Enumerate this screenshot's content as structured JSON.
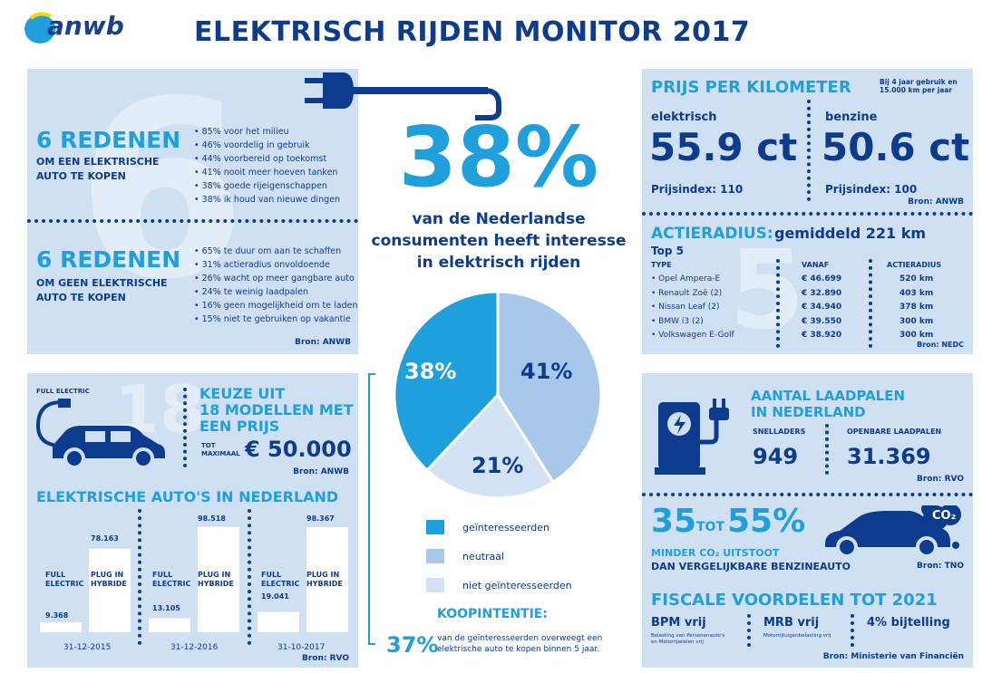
{
  "logo": {
    "text": "anwb"
  },
  "title": "ELEKTRISCH RIJDEN MONITOR 2017",
  "reasons": {
    "for_title": "6 REDENEN",
    "for_sub": [
      "OM EEN ELEKTRISCHE",
      "AUTO TE KOPEN"
    ],
    "for_items": [
      "85% voor het milieu",
      "46% voordelig in gebruik",
      "44% voorbereid op toekomst",
      "41% nooit meer hoeven tanken",
      "38% goede rijeigenschappen",
      "38% ik houd van nieuwe dingen"
    ],
    "against_title": "6 REDENEN",
    "against_sub": [
      "OM GEEN ELEKTRISCHE",
      "AUTO TE KOPEN"
    ],
    "against_items": [
      "65% te duur om aan te schaffen",
      "31% actieradius onvoldoende",
      "26% wacht op meer gangbare auto",
      "24% te weinig laadpalen",
      "16% geen mogelijkheid om te laden",
      "15% niet te gebruiken op vakantie"
    ],
    "source": "Bron: ANWB",
    "ghost_number": "6"
  },
  "center": {
    "big_pct": "38%",
    "line1": "van de Nederlandse",
    "line2": "consumenten heeft interesse",
    "line3": "in elektrisch rijden",
    "legend": [
      {
        "label": "geïnteresseerden",
        "color": "#1fa0dd"
      },
      {
        "label": "neutraal",
        "color": "#a7c8ea"
      },
      {
        "label": "niet geïnteresseerden",
        "color": "#d3e3f5"
      }
    ],
    "koop_title": "KOOPINTENTIE:",
    "koop_pct": "37%",
    "koop_text1": "van de geïnteresseerden overweegt een",
    "koop_text2": "elektrische auto te kopen binnen 5 jaar."
  },
  "pie": {
    "slices": [
      {
        "label": "38%",
        "value": 38,
        "color": "#1fa0dd"
      },
      {
        "label": "41%",
        "value": 41,
        "color": "#a7c8ea"
      },
      {
        "label": "21%",
        "value": 21,
        "color": "#d3e3f5"
      }
    ]
  },
  "models": {
    "full_electric": "FULL ELECTRIC",
    "ghost": "18",
    "line1": "KEUZE UIT",
    "line2": "18 MODELLEN MET",
    "line3": "EEN PRIJS",
    "tot": "TOT",
    "maximaal": "MAXIMAAL",
    "price": "€ 50.000",
    "source": "Bron: ANWB"
  },
  "cars_nl": {
    "title": "ELEKTRISCHE AUTO'S IN NEDERLAND",
    "full_label": [
      "FULL",
      "ELECTRIC"
    ],
    "plug_label": [
      "PLUG IN",
      "HYBRIDE"
    ],
    "groups": [
      {
        "date": "31-12-2015",
        "full": "9.368",
        "plug": "78.163"
      },
      {
        "date": "31-12-2016",
        "full": "13.105",
        "plug": "98.518"
      },
      {
        "date": "31-10-2017",
        "full": "19.041",
        "plug": "98.367"
      }
    ],
    "source": "Bron: RVO"
  },
  "price_km": {
    "title": "PRIJS PER KILOMETER",
    "note1": "Bij 4 jaar gebruik en",
    "note2": "15.000 km per jaar",
    "elektrisch_label": "elektrisch",
    "elektrisch_value": "55.9 ct",
    "elektrisch_index": "Prijsindex: 110",
    "benzine_label": "benzine",
    "benzine_value": "50.6 ct",
    "benzine_index": "Prijsindex: 100",
    "source": "Bron: ANWB"
  },
  "range": {
    "title": "ACTIERADIUS:",
    "avg": "gemiddeld 221 km",
    "top": "Top 5",
    "col_type": "TYPE",
    "col_from": "VANAF",
    "col_range": "ACTIERADIUS",
    "rows": [
      {
        "type": "Opel Ampera-E",
        "price": "€ 46.699",
        "km": "520 km"
      },
      {
        "type": "Renault Zoë (2)",
        "price": "€ 32.890",
        "km": "403 km"
      },
      {
        "type": "Nissan Leaf (2)",
        "price": "€ 34.940",
        "km": "378 km"
      },
      {
        "type": "BMW i3 (2)",
        "price": "€ 39.550",
        "km": "300 km"
      },
      {
        "type": "Volkswagen E-Golf",
        "price": "€ 38.920",
        "km": "300 km"
      }
    ],
    "ghost": "5",
    "source": "Bron: NEDC"
  },
  "chargers": {
    "title1": "AANTAL LAADPALEN",
    "title2": "IN NEDERLAND",
    "snel_label": "SNELLADERS",
    "snel_value": "949",
    "open_label": "OPENBARE LAADPALEN",
    "open_value": "31.369",
    "source": "Bron: RVO"
  },
  "co2": {
    "from": "35",
    "tot": "TOT",
    "to": "55%",
    "line1": "MINDER CO₂ UITSTOOT",
    "line2": "DAN VERGELIJKBARE BENZINEAUTO",
    "badge": "CO₂",
    "source": "Bron: TNO"
  },
  "fiscal": {
    "title": "FISCALE VOORDELEN TOT 2021",
    "bpm": "BPM vrij",
    "bpm_note1": "Belasting van Personenauto's",
    "bpm_note2": "en Motorrijwielen vrij",
    "mrb": "MRB vrij",
    "mrb_note": "Motorrijtuigenbelasting vrij",
    "bijtelling": "4% bijtelling",
    "source": "Bron: Ministerie van Financiën"
  }
}
